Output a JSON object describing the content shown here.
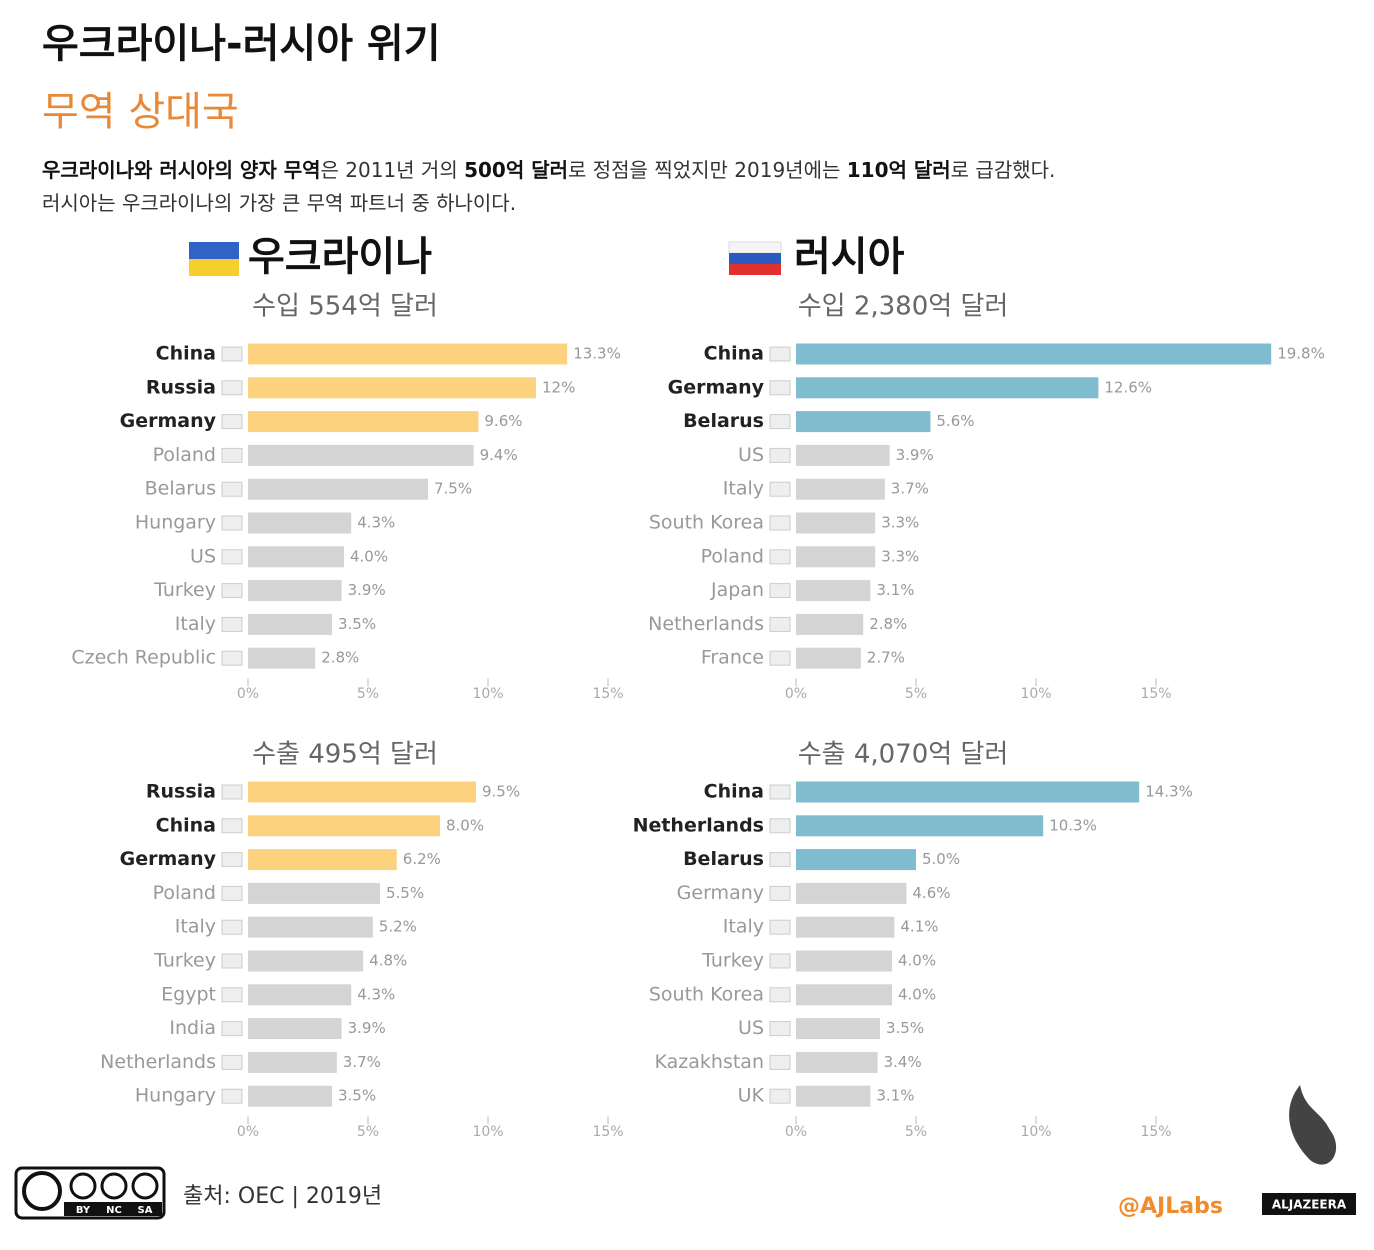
{
  "header": {
    "title": "우크라이나-러시아 위기",
    "subtitle": "무역 상대국",
    "description": [
      [
        {
          "text": "우크라이나와 러시아의 양자 무역",
          "bold": true
        },
        {
          "text": "은 2011년 거의 ",
          "bold": false
        },
        {
          "text": "500억 달러",
          "bold": true
        },
        {
          "text": "로 정점을 찍었지만 2019년에는 ",
          "bold": false
        },
        {
          "text": "110억 달러",
          "bold": true
        },
        {
          "text": "로 급감했다.",
          "bold": false
        }
      ],
      [
        {
          "text": "러시아는 우크라이나의 가장 큰 무역 파트너 중 하나이다.",
          "bold": false
        }
      ]
    ]
  },
  "sections": [
    "우크라이나",
    "러시아"
  ],
  "chart_data": [
    {
      "type": "bar",
      "orientation": "horizontal",
      "title": "수입 554억 달러",
      "categories": [
        "China",
        "Russia",
        "Germany",
        "Poland",
        "Belarus",
        "Hungary",
        "US",
        "Turkey",
        "Italy",
        "Czech Republic"
      ],
      "values": [
        13.3,
        12,
        9.6,
        9.4,
        7.5,
        4.3,
        4.0,
        3.9,
        3.5,
        2.8
      ],
      "value_labels": [
        "13.3%",
        "12%",
        "9.6%",
        "9.4%",
        "7.5%",
        "4.3%",
        "4.0%",
        "3.9%",
        "3.5%",
        "2.8%"
      ],
      "colors": [
        "#fdd27f",
        "#fdd27f",
        "#fdd27f",
        "#d4d4d4",
        "#d4d4d4",
        "#d4d4d4",
        "#d4d4d4",
        "#d4d4d4",
        "#d4d4d4",
        "#d4d4d4"
      ],
      "label_colors": [
        "#222",
        "#222",
        "#222",
        "#999",
        "#999",
        "#999",
        "#999",
        "#999",
        "#999",
        "#999"
      ],
      "xlim": [
        0,
        15
      ],
      "xticks": [
        {
          "value": 0,
          "label": "0%"
        },
        {
          "value": 5,
          "label": "5%"
        },
        {
          "value": 10,
          "label": "10%"
        },
        {
          "value": 15,
          "label": "15%"
        }
      ]
    },
    {
      "type": "bar",
      "orientation": "horizontal",
      "title": "수입 2,380억 달러",
      "categories": [
        "China",
        "Germany",
        "Belarus",
        "US",
        "Italy",
        "South Korea",
        "Poland",
        "Japan",
        "Netherlands",
        "France"
      ],
      "values": [
        19.8,
        12.6,
        5.6,
        3.9,
        3.7,
        3.3,
        3.3,
        3.1,
        2.8,
        2.7
      ],
      "value_labels": [
        "19.8%",
        "12.6%",
        "5.6%",
        "3.9%",
        "3.7%",
        "3.3%",
        "3.3%",
        "3.1%",
        "2.8%",
        "2.7%"
      ],
      "colors": [
        "#7fbcd0",
        "#7fbcd0",
        "#7fbcd0",
        "#d4d4d4",
        "#d4d4d4",
        "#d4d4d4",
        "#d4d4d4",
        "#d4d4d4",
        "#d4d4d4",
        "#d4d4d4"
      ],
      "label_colors": [
        "#222",
        "#222",
        "#222",
        "#999",
        "#999",
        "#999",
        "#999",
        "#999",
        "#999",
        "#999"
      ],
      "xlim": [
        0,
        15
      ],
      "xticks": [
        {
          "value": 0,
          "label": "0%"
        },
        {
          "value": 5,
          "label": "5%"
        },
        {
          "value": 10,
          "label": "10%"
        },
        {
          "value": 15,
          "label": "15%"
        }
      ]
    },
    {
      "type": "bar",
      "orientation": "horizontal",
      "title": "수출 495억 달러",
      "categories": [
        "Russia",
        "China",
        "Germany",
        "Poland",
        "Italy",
        "Turkey",
        "Egypt",
        "India",
        "Netherlands",
        "Hungary"
      ],
      "values": [
        9.5,
        8.0,
        6.2,
        5.5,
        5.2,
        4.8,
        4.3,
        3.9,
        3.7,
        3.5
      ],
      "value_labels": [
        "9.5%",
        "8.0%",
        "6.2%",
        "5.5%",
        "5.2%",
        "4.8%",
        "4.3%",
        "3.9%",
        "3.7%",
        "3.5%"
      ],
      "colors": [
        "#fdd27f",
        "#fdd27f",
        "#fdd27f",
        "#d4d4d4",
        "#d4d4d4",
        "#d4d4d4",
        "#d4d4d4",
        "#d4d4d4",
        "#d4d4d4",
        "#d4d4d4"
      ],
      "label_colors": [
        "#222",
        "#222",
        "#222",
        "#999",
        "#999",
        "#999",
        "#999",
        "#999",
        "#999",
        "#999"
      ],
      "xlim": [
        0,
        15
      ],
      "xticks": [
        {
          "value": 0,
          "label": "0%"
        },
        {
          "value": 5,
          "label": "5%"
        },
        {
          "value": 10,
          "label": "10%"
        },
        {
          "value": 15,
          "label": "15%"
        }
      ]
    },
    {
      "type": "bar",
      "orientation": "horizontal",
      "title": "수출 4,070억 달러",
      "categories": [
        "China",
        "Netherlands",
        "Belarus",
        "Germany",
        "Italy",
        "Turkey",
        "South Korea",
        "US",
        "Kazakhstan",
        "UK"
      ],
      "values": [
        14.3,
        10.3,
        5.0,
        4.6,
        4.1,
        4.0,
        4.0,
        3.5,
        3.4,
        3.1
      ],
      "value_labels": [
        "14.3%",
        "10.3%",
        "5.0%",
        "4.6%",
        "4.1%",
        "4.0%",
        "4.0%",
        "3.5%",
        "3.4%",
        "3.1%"
      ],
      "colors": [
        "#7fbcd0",
        "#7fbcd0",
        "#7fbcd0",
        "#d4d4d4",
        "#d4d4d4",
        "#d4d4d4",
        "#d4d4d4",
        "#d4d4d4",
        "#d4d4d4",
        "#d4d4d4"
      ],
      "label_colors": [
        "#222",
        "#222",
        "#222",
        "#999",
        "#999",
        "#999",
        "#999",
        "#999",
        "#999",
        "#999"
      ],
      "xlim": [
        0,
        15
      ],
      "xticks": [
        {
          "value": 0,
          "label": "0%"
        },
        {
          "value": 5,
          "label": "5%"
        },
        {
          "value": 10,
          "label": "10%"
        },
        {
          "value": 15,
          "label": "15%"
        }
      ]
    }
  ],
  "footer": {
    "source": "출처: OEC | 2019년",
    "handle": "@AJLabs",
    "brand": "ALJAZEERA",
    "license": [
      "BY",
      "NC",
      "SA"
    ]
  }
}
